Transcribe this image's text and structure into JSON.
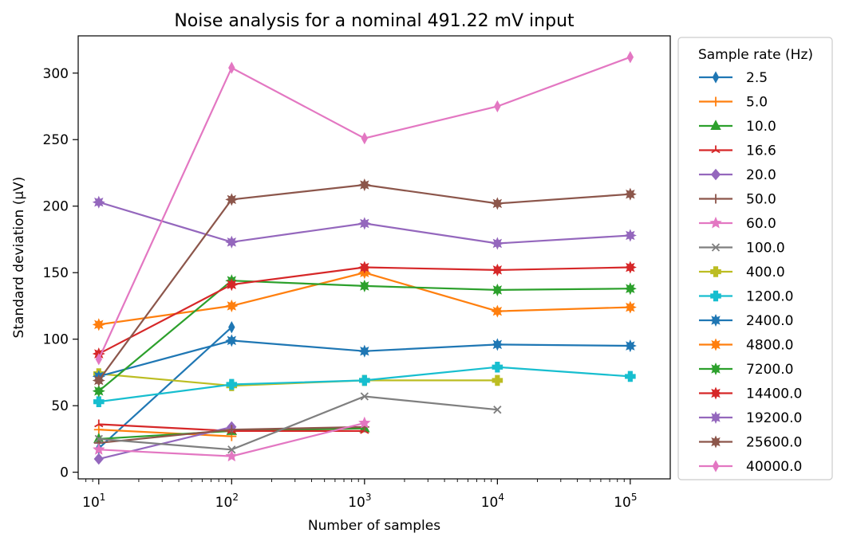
{
  "chart_data": {
    "type": "line",
    "title": "Noise analysis for a nominal 491.22 mV input",
    "xlabel": "Number of samples",
    "ylabel": "Standard deviation (µV)",
    "xscale": "log",
    "xlim": [
      7,
      200000
    ],
    "ylim": [
      -5,
      328
    ],
    "x_ticks": [
      10,
      100,
      1000,
      10000,
      100000
    ],
    "x_tick_labels": [
      {
        "base": "10",
        "exp": "1"
      },
      {
        "base": "10",
        "exp": "2"
      },
      {
        "base": "10",
        "exp": "3"
      },
      {
        "base": "10",
        "exp": "4"
      },
      {
        "base": "10",
        "exp": "5"
      }
    ],
    "y_ticks": [
      0,
      50,
      100,
      150,
      200,
      250,
      300
    ],
    "y_tick_labels": [
      "0",
      "50",
      "100",
      "150",
      "200",
      "250",
      "300"
    ],
    "grid": false,
    "legend": {
      "title": "Sample rate (Hz)",
      "placement": "outside-right"
    },
    "series": [
      {
        "name": "2.5",
        "color": "#1f77b4",
        "marker": "thin_diamond",
        "x": [
          10,
          100
        ],
        "y": [
          18,
          109
        ]
      },
      {
        "name": "5.0",
        "color": "#ff7f0e",
        "marker": "plus",
        "x": [
          10,
          100
        ],
        "y": [
          32,
          27
        ]
      },
      {
        "name": "10.0",
        "color": "#2ca02c",
        "marker": "triangle",
        "x": [
          10,
          100,
          1000
        ],
        "y": [
          25,
          31,
          33
        ]
      },
      {
        "name": "16.6",
        "color": "#d62728",
        "marker": "tri",
        "x": [
          10,
          100,
          1000
        ],
        "y": [
          36,
          31,
          31
        ]
      },
      {
        "name": "20.0",
        "color": "#9467bd",
        "marker": "diamond",
        "x": [
          10,
          100
        ],
        "y": [
          10,
          34
        ]
      },
      {
        "name": "50.0",
        "color": "#8c564b",
        "marker": "plus",
        "x": [
          10,
          100,
          1000
        ],
        "y": [
          22,
          32,
          34
        ]
      },
      {
        "name": "60.0",
        "color": "#e377c2",
        "marker": "star",
        "x": [
          10,
          100,
          1000
        ],
        "y": [
          17,
          12,
          37
        ]
      },
      {
        "name": "100.0",
        "color": "#7f7f7f",
        "marker": "x",
        "x": [
          10,
          100,
          1000,
          10000
        ],
        "y": [
          25,
          17,
          57,
          47
        ]
      },
      {
        "name": "400.0",
        "color": "#bcbd22",
        "marker": "plus_filled",
        "x": [
          10,
          100,
          1000,
          10000
        ],
        "y": [
          74,
          65,
          69,
          69
        ]
      },
      {
        "name": "1200.0",
        "color": "#17becf",
        "marker": "plus_filled",
        "x": [
          10,
          100,
          1000,
          10000,
          100000
        ],
        "y": [
          53,
          66,
          69,
          79,
          72
        ]
      },
      {
        "name": "2400.0",
        "color": "#1f77b4",
        "marker": "star8",
        "x": [
          10,
          100,
          1000,
          10000,
          100000
        ],
        "y": [
          72,
          99,
          91,
          96,
          95
        ]
      },
      {
        "name": "4800.0",
        "color": "#ff7f0e",
        "marker": "star8",
        "x": [
          10,
          100,
          1000,
          10000,
          100000
        ],
        "y": [
          111,
          125,
          150,
          121,
          124
        ]
      },
      {
        "name": "7200.0",
        "color": "#2ca02c",
        "marker": "star8",
        "x": [
          10,
          100,
          1000,
          10000,
          100000
        ],
        "y": [
          61,
          144,
          140,
          137,
          138
        ]
      },
      {
        "name": "14400.0",
        "color": "#d62728",
        "marker": "star8",
        "x": [
          10,
          100,
          1000,
          10000,
          100000
        ],
        "y": [
          89,
          141,
          154,
          152,
          154
        ]
      },
      {
        "name": "19200.0",
        "color": "#9467bd",
        "marker": "star8",
        "x": [
          10,
          100,
          1000,
          10000,
          100000
        ],
        "y": [
          203,
          173,
          187,
          172,
          178
        ]
      },
      {
        "name": "25600.0",
        "color": "#8c564b",
        "marker": "star8",
        "x": [
          10,
          100,
          1000,
          10000,
          100000
        ],
        "y": [
          69,
          205,
          216,
          202,
          209
        ]
      },
      {
        "name": "40000.0",
        "color": "#e377c2",
        "marker": "thin_diamond",
        "x": [
          10,
          100,
          1000,
          10000,
          100000
        ],
        "y": [
          85,
          304,
          251,
          275,
          312
        ]
      }
    ]
  }
}
